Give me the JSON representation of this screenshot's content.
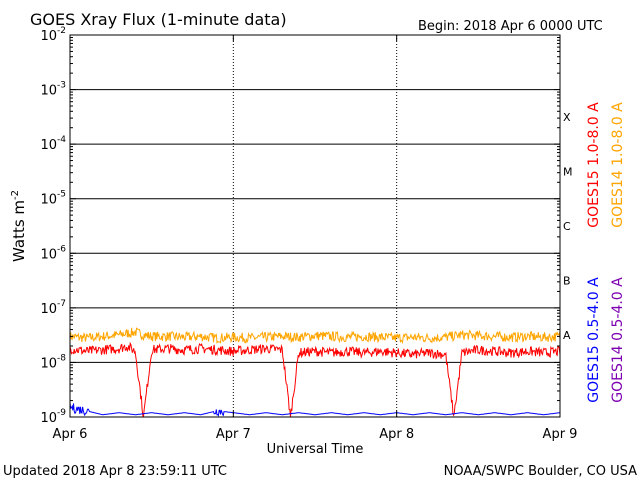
{
  "chart_data": {
    "type": "line",
    "title": "GOES Xray Flux (1-minute data)",
    "begin_label": "Begin:  2018 Apr 6 0000 UTC",
    "xlabel": "Universal Time",
    "ylabel": "Watts m",
    "ylabel_exponent": "-2",
    "y_scale": "log",
    "ylim": [
      1e-09,
      0.01
    ],
    "y_ticks": [
      {
        "base": "10",
        "exp": "-9"
      },
      {
        "base": "10",
        "exp": "-8"
      },
      {
        "base": "10",
        "exp": "-7"
      },
      {
        "base": "10",
        "exp": "-6"
      },
      {
        "base": "10",
        "exp": "-5"
      },
      {
        "base": "10",
        "exp": "-4"
      },
      {
        "base": "10",
        "exp": "-3"
      },
      {
        "base": "10",
        "exp": "-2"
      }
    ],
    "x_ticks": [
      "Apr 6",
      "Apr 7",
      "Apr 8",
      "Apr 9"
    ],
    "xlim_days": [
      0,
      3
    ],
    "flare_classes": [
      "A",
      "B",
      "C",
      "M",
      "X"
    ],
    "footer_left": "Updated 2018 Apr  8 23:59:11 UTC",
    "footer_right": "NOAA/SWPC Boulder, CO USA",
    "grid": true,
    "colors": {
      "goes15_long": "#ff0000",
      "goes14_long": "#ffa500",
      "goes15_short": "#0000ff",
      "goes14_short": "#7d00b0",
      "threshold_lines": "#000000"
    },
    "series": [
      {
        "name": "GOES14 1.0-8.0 A",
        "color": "#ffa500",
        "x": [
          0.0,
          0.1,
          0.2,
          0.3,
          0.35,
          0.4,
          0.45,
          0.5,
          0.6,
          0.7,
          0.8,
          0.9,
          1.0,
          1.1,
          1.2,
          1.3,
          1.4,
          1.5,
          1.6,
          1.7,
          1.8,
          1.9,
          2.0,
          2.1,
          2.2,
          2.3,
          2.4,
          2.5,
          2.6,
          2.7,
          2.8,
          2.9,
          3.0
        ],
        "y": [
          3e-08,
          2.8e-08,
          3e-08,
          3.2e-08,
          3.4e-08,
          3.6e-08,
          3.2e-08,
          3e-08,
          3e-08,
          2.9e-08,
          3e-08,
          2.8e-08,
          2.9e-08,
          2.8e-08,
          2.9e-08,
          3e-08,
          2.9e-08,
          3.1e-08,
          3e-08,
          2.9e-08,
          3e-08,
          2.9e-08,
          2.8e-08,
          2.9e-08,
          2.8e-08,
          2.9e-08,
          3.2e-08,
          3.1e-08,
          3e-08,
          2.9e-08,
          3e-08,
          2.9e-08,
          3e-08
        ]
      },
      {
        "name": "GOES15 1.0-8.0 A",
        "color": "#ff0000",
        "x": [
          0.0,
          0.1,
          0.2,
          0.3,
          0.35,
          0.4,
          0.45,
          0.5,
          0.6,
          0.7,
          0.8,
          0.9,
          1.0,
          1.1,
          1.2,
          1.3,
          1.35,
          1.4,
          1.5,
          1.6,
          1.7,
          1.8,
          1.9,
          2.0,
          2.1,
          2.2,
          2.3,
          2.35,
          2.4,
          2.5,
          2.6,
          2.7,
          2.8,
          2.9,
          3.0
        ],
        "y": [
          1.8e-08,
          1.6e-08,
          1.7e-08,
          1.8e-08,
          2e-08,
          1.6e-08,
          1e-09,
          1.7e-08,
          1.8e-08,
          1.7e-08,
          1.8e-08,
          1.7e-08,
          1.6e-08,
          1.7e-08,
          1.8e-08,
          1.7e-08,
          1e-09,
          1.5e-08,
          1.6e-08,
          1.5e-08,
          1.6e-08,
          1.5e-08,
          1.6e-08,
          1.5e-08,
          1.4e-08,
          1.5e-08,
          1.4e-08,
          1e-09,
          1.5e-08,
          1.7e-08,
          1.6e-08,
          1.5e-08,
          1.6e-08,
          1.5e-08,
          1.6e-08
        ]
      },
      {
        "name": "GOES15 0.5-4.0 A",
        "color": "#0000ff",
        "x": [
          0.0,
          0.1,
          0.2,
          0.3,
          0.4,
          0.5,
          0.6,
          0.7,
          0.8,
          0.9,
          1.0,
          1.1,
          1.2,
          1.3,
          1.4,
          1.5,
          1.6,
          1.7,
          1.8,
          1.9,
          2.0,
          2.1,
          2.2,
          2.3,
          2.4,
          2.5,
          2.6,
          2.7,
          2.8,
          2.9,
          3.0
        ],
        "y": [
          1.5e-09,
          1.3e-09,
          1.1e-09,
          1.2e-09,
          1.1e-09,
          1.2e-09,
          1.1e-09,
          1.2e-09,
          1.1e-09,
          1.3e-09,
          1.2e-09,
          1.1e-09,
          1.2e-09,
          1.1e-09,
          1.2e-09,
          1.1e-09,
          1.2e-09,
          1.1e-09,
          1.2e-09,
          1.1e-09,
          1.2e-09,
          1.1e-09,
          1.2e-09,
          1.1e-09,
          1.2e-09,
          1.1e-09,
          1.2e-09,
          1.1e-09,
          1.2e-09,
          1.1e-09,
          1.2e-09
        ]
      },
      {
        "name": "GOES14 0.5-4.0 A",
        "color": "#7d00b0",
        "x": [
          0.0,
          3.0
        ],
        "y": [
          1e-09,
          1e-09
        ]
      }
    ]
  }
}
